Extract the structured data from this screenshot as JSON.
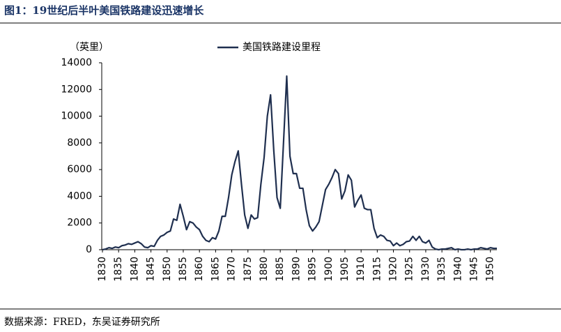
{
  "chart_data": {
    "type": "line",
    "title": "图1：19世纪后半叶美国铁路建设迅速增长",
    "source": "数据来源：FRED，东吴证券研究所",
    "y_label": "（英里）",
    "x": [
      1830,
      1831,
      1832,
      1833,
      1834,
      1835,
      1836,
      1837,
      1838,
      1839,
      1840,
      1841,
      1842,
      1843,
      1844,
      1845,
      1846,
      1847,
      1848,
      1849,
      1850,
      1851,
      1852,
      1853,
      1854,
      1855,
      1856,
      1857,
      1858,
      1859,
      1860,
      1861,
      1862,
      1863,
      1864,
      1865,
      1866,
      1867,
      1868,
      1869,
      1870,
      1871,
      1872,
      1873,
      1874,
      1875,
      1876,
      1877,
      1878,
      1879,
      1880,
      1881,
      1882,
      1883,
      1884,
      1885,
      1886,
      1887,
      1888,
      1889,
      1890,
      1891,
      1892,
      1893,
      1894,
      1895,
      1896,
      1897,
      1898,
      1899,
      1900,
      1901,
      1902,
      1903,
      1904,
      1905,
      1906,
      1907,
      1908,
      1909,
      1910,
      1911,
      1912,
      1913,
      1914,
      1915,
      1916,
      1917,
      1918,
      1919,
      1920,
      1921,
      1922,
      1923,
      1924,
      1925,
      1926,
      1927,
      1928,
      1929,
      1930,
      1931,
      1932,
      1933,
      1934,
      1935,
      1936,
      1937,
      1938,
      1939,
      1940,
      1941,
      1942,
      1943,
      1944,
      1945,
      1946,
      1947,
      1948,
      1949,
      1950,
      1951,
      1952
    ],
    "series": [
      {
        "name": "美国铁路建设里程",
        "color": "#1f2f4f",
        "values": [
          0,
          50,
          150,
          100,
          200,
          150,
          300,
          350,
          450,
          400,
          500,
          600,
          450,
          200,
          150,
          300,
          250,
          700,
          1000,
          1100,
          1300,
          1400,
          2300,
          2200,
          3400,
          2500,
          1500,
          2100,
          2000,
          1700,
          1500,
          1000,
          700,
          600,
          900,
          800,
          1400,
          2500,
          2500,
          3900,
          5600,
          6600,
          7400,
          4900,
          2600,
          1600,
          2600,
          2300,
          2400,
          4900,
          6900,
          10000,
          11600,
          7400,
          3900,
          3100,
          8000,
          13000,
          7000,
          5700,
          5700,
          4600,
          4600,
          3000,
          1800,
          1400,
          1700,
          2100,
          3300,
          4500,
          4900,
          5400,
          6000,
          5700,
          3800,
          4400,
          5600,
          5200,
          3200,
          3700,
          4100,
          3100,
          3000,
          3000,
          1600,
          900,
          1100,
          1000,
          700,
          650,
          300,
          500,
          300,
          400,
          600,
          650,
          1000,
          700,
          1000,
          600,
          500,
          700,
          200,
          50,
          0,
          50,
          50,
          100,
          150,
          0,
          50,
          0,
          0,
          50,
          0,
          50,
          50,
          150,
          100,
          50,
          150,
          100,
          100
        ]
      }
    ],
    "xlim": [
      1830,
      1952
    ],
    "xticks": [
      1830,
      1835,
      1840,
      1845,
      1850,
      1855,
      1860,
      1865,
      1870,
      1875,
      1880,
      1885,
      1890,
      1895,
      1900,
      1905,
      1910,
      1915,
      1920,
      1925,
      1930,
      1935,
      1940,
      1945,
      1950
    ],
    "ylim": [
      0,
      14000
    ],
    "yticks": [
      0,
      2000,
      4000,
      6000,
      8000,
      10000,
      12000,
      14000
    ],
    "grid": false,
    "legend": "top"
  }
}
